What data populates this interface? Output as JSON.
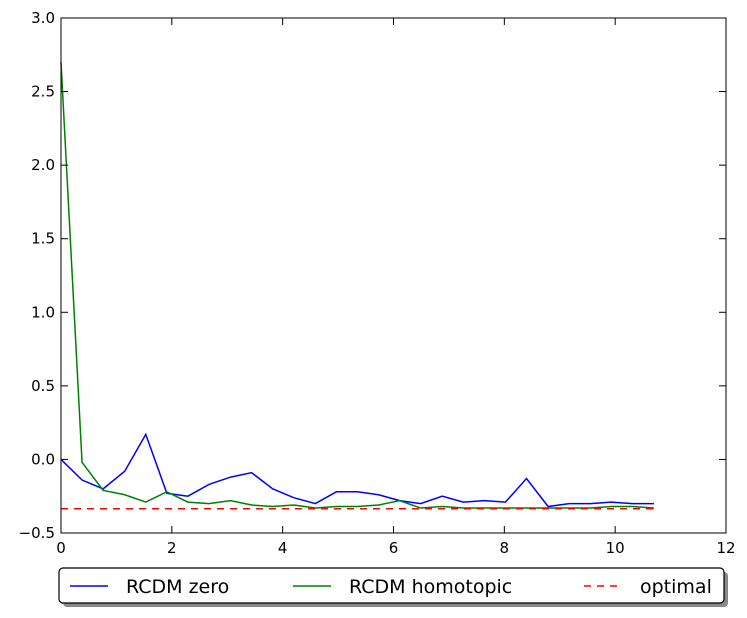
{
  "chart_data": {
    "type": "line",
    "xlim": [
      0,
      12
    ],
    "ylim": [
      -0.5,
      3.0
    ],
    "x_ticks": [
      "0",
      "2",
      "4",
      "6",
      "8",
      "10",
      "12"
    ],
    "y_ticks": [
      "−0.5",
      "0.0",
      "0.5",
      "1.0",
      "1.5",
      "2.0",
      "2.5",
      "3.0"
    ],
    "grid": false,
    "legend_position": "bottom, outside plot",
    "series": [
      {
        "name": "RCDM zero",
        "color": "#0000ff",
        "style": "solid",
        "x": [
          0.0,
          0.38,
          0.76,
          1.15,
          1.53,
          1.91,
          2.29,
          2.67,
          3.06,
          3.44,
          3.82,
          4.2,
          4.59,
          4.97,
          5.35,
          5.73,
          6.11,
          6.49,
          6.88,
          7.26,
          7.64,
          8.02,
          8.4,
          8.79,
          9.17,
          9.55,
          9.93,
          10.31,
          10.7
        ],
        "y": [
          0.0,
          -0.14,
          -0.2,
          -0.08,
          0.17,
          -0.23,
          -0.25,
          -0.17,
          -0.12,
          -0.09,
          -0.2,
          -0.26,
          -0.3,
          -0.22,
          -0.22,
          -0.24,
          -0.28,
          -0.3,
          -0.25,
          -0.29,
          -0.28,
          -0.29,
          -0.13,
          -0.32,
          -0.3,
          -0.3,
          -0.29,
          -0.3,
          -0.3
        ]
      },
      {
        "name": "RCDM homotopic",
        "color": "#008000",
        "style": "solid",
        "x": [
          0.0,
          0.38,
          0.76,
          1.15,
          1.53,
          1.91,
          2.29,
          2.67,
          3.06,
          3.44,
          3.82,
          4.2,
          4.59,
          4.97,
          5.35,
          5.73,
          6.11,
          6.49,
          6.88,
          7.26,
          7.64,
          8.02,
          8.4,
          8.79,
          9.17,
          9.55,
          9.93,
          10.31,
          10.7
        ],
        "y": [
          2.7,
          -0.02,
          -0.21,
          -0.24,
          -0.29,
          -0.22,
          -0.29,
          -0.3,
          -0.28,
          -0.31,
          -0.32,
          -0.31,
          -0.33,
          -0.32,
          -0.32,
          -0.31,
          -0.28,
          -0.33,
          -0.32,
          -0.33,
          -0.33,
          -0.33,
          -0.33,
          -0.33,
          -0.33,
          -0.33,
          -0.32,
          -0.32,
          -0.33
        ]
      },
      {
        "name": "optimal",
        "color": "#ff0000",
        "style": "dashed",
        "x": [
          0.0,
          10.7
        ],
        "y": [
          -0.335,
          -0.335
        ]
      }
    ]
  }
}
